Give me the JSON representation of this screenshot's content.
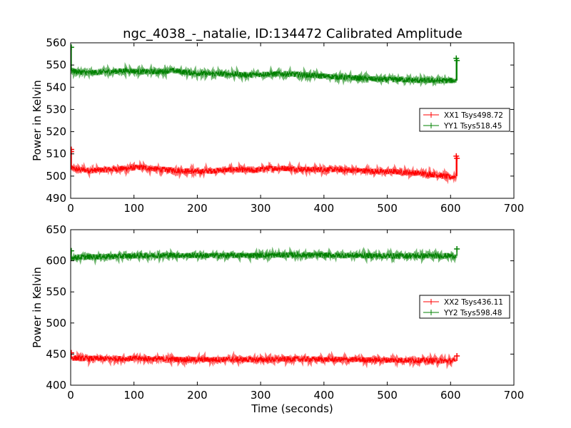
{
  "figure": {
    "title": "ngc_4038_-_natalie, ID:134472 Calibrated Amplitude"
  },
  "chart_data": [
    {
      "type": "line",
      "ylabel": "Power in Kelvin",
      "xlabel": "",
      "xlim": [
        0,
        700
      ],
      "ylim": [
        490,
        560
      ],
      "xticks": [
        0,
        100,
        200,
        300,
        400,
        500,
        600,
        700
      ],
      "yticks": [
        490,
        500,
        510,
        520,
        530,
        540,
        550,
        560
      ],
      "legend": "center-right",
      "series": [
        {
          "name": "XX1 Tsys498.72",
          "color": "#ff0000",
          "x": [
            1,
            10,
            30,
            60,
            90,
            110,
            140,
            170,
            200,
            230,
            260,
            290,
            310,
            340,
            370,
            400,
            430,
            460,
            490,
            510,
            540,
            560,
            580,
            600,
            608
          ],
          "y": [
            503.5,
            503,
            502.5,
            503,
            503.5,
            504,
            503,
            502.5,
            502,
            502.5,
            503,
            502.5,
            503.5,
            503.5,
            503,
            503,
            502.8,
            502.5,
            502,
            502,
            501.5,
            501,
            500.5,
            499.5,
            500
          ],
          "spikes": [
            [
              1,
              512
            ],
            [
              1,
              511
            ],
            [
              609,
              509
            ],
            [
              610,
              508
            ]
          ]
        },
        {
          "name": "YY1 Tsys518.45",
          "color": "#008000",
          "x": [
            1,
            10,
            30,
            60,
            90,
            110,
            140,
            160,
            190,
            220,
            250,
            280,
            310,
            340,
            370,
            400,
            430,
            460,
            490,
            520,
            550,
            580,
            608
          ],
          "y": [
            547.5,
            547,
            546.5,
            547,
            547.5,
            547,
            547,
            547.5,
            546.5,
            546,
            546,
            545.5,
            546,
            546,
            545.5,
            545,
            544.5,
            544,
            543.5,
            543.5,
            543,
            543,
            543
          ],
          "spikes": [
            [
              1,
              558
            ],
            [
              609,
              553
            ],
            [
              610,
              552
            ]
          ]
        }
      ]
    },
    {
      "type": "line",
      "ylabel": "Power in Kelvin",
      "xlabel": "Time (seconds)",
      "xlim": [
        0,
        700
      ],
      "ylim": [
        400,
        650
      ],
      "xticks": [
        0,
        100,
        200,
        300,
        400,
        500,
        600,
        700
      ],
      "yticks": [
        400,
        450,
        500,
        550,
        600,
        650
      ],
      "legend": "center-right",
      "series": [
        {
          "name": "XX2 Tsys436.11",
          "color": "#ff0000",
          "x": [
            1,
            20,
            60,
            100,
            150,
            200,
            250,
            300,
            350,
            400,
            450,
            500,
            550,
            600,
            608
          ],
          "y": [
            444,
            443,
            442.5,
            443,
            442,
            441,
            441.5,
            441,
            442,
            441.5,
            441,
            440.5,
            440,
            439,
            439
          ],
          "spikes": [
            [
              1,
              452
            ],
            [
              610,
              447
            ]
          ]
        },
        {
          "name": "YY2 Tsys598.48",
          "color": "#008000",
          "x": [
            1,
            20,
            60,
            100,
            150,
            200,
            250,
            300,
            350,
            400,
            450,
            500,
            550,
            600,
            608
          ],
          "y": [
            605,
            606,
            607,
            608,
            609,
            608.5,
            608.5,
            609,
            609.5,
            609,
            608.5,
            608,
            608,
            608,
            608
          ],
          "spikes": [
            [
              1,
              616
            ],
            [
              610,
              619
            ]
          ]
        }
      ]
    }
  ]
}
